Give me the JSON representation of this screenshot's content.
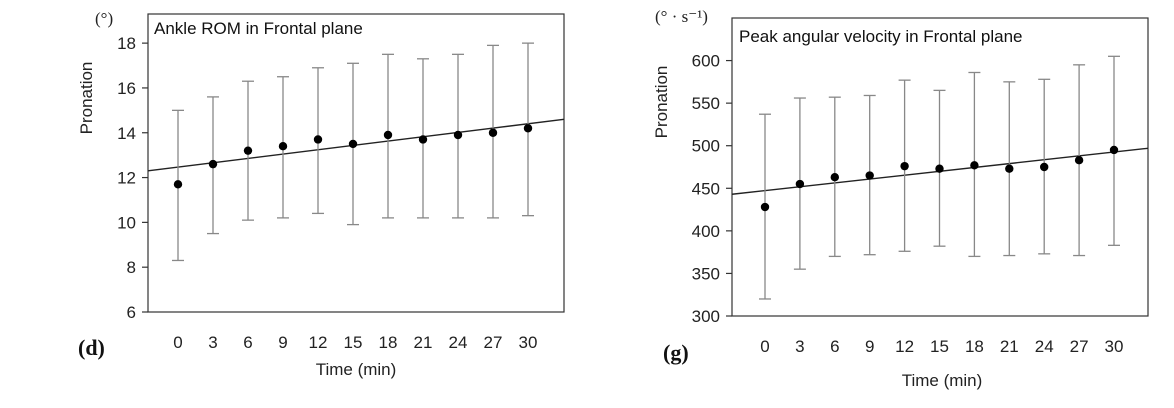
{
  "chart_data": [
    {
      "type": "scatter",
      "panel": "(d)",
      "title": "Ankle ROM in Frontal plane",
      "xlabel": "Time (min)",
      "ylabel": "Pronation",
      "unit": "(°)",
      "x": [
        0,
        3,
        6,
        9,
        12,
        15,
        18,
        21,
        24,
        27,
        30
      ],
      "y": [
        11.7,
        12.6,
        13.2,
        13.4,
        13.7,
        13.5,
        13.9,
        13.7,
        13.9,
        14.0,
        14.2
      ],
      "error_low": [
        8.3,
        9.5,
        10.1,
        10.2,
        10.4,
        9.9,
        10.2,
        10.2,
        10.2,
        10.2,
        10.3
      ],
      "error_high": [
        15.0,
        15.6,
        16.3,
        16.5,
        16.9,
        17.1,
        17.5,
        17.3,
        17.5,
        17.9,
        18.0
      ],
      "trend": {
        "y_at_start": 12.3,
        "y_at_end": 14.6
      },
      "ylim": [
        6,
        19.3
      ],
      "yticks": [
        6,
        8,
        10,
        12,
        14,
        16,
        18
      ],
      "xticks": [
        0,
        3,
        6,
        9,
        12,
        15,
        18,
        21,
        24,
        27,
        30
      ],
      "legend": "none"
    },
    {
      "type": "scatter",
      "panel": "(g)",
      "title": "Peak angular velocity in Frontal plane",
      "xlabel": "Time (min)",
      "ylabel": "Pronation",
      "unit": "(° · s⁻¹)",
      "x": [
        0,
        3,
        6,
        9,
        12,
        15,
        18,
        21,
        24,
        27,
        30
      ],
      "y": [
        428,
        455,
        463,
        465,
        476,
        473,
        477,
        473,
        475,
        483,
        495
      ],
      "error_low": [
        320,
        355,
        370,
        372,
        376,
        382,
        370,
        371,
        373,
        371,
        383
      ],
      "error_high": [
        537,
        556,
        557,
        559,
        577,
        565,
        586,
        575,
        578,
        595,
        605
      ],
      "trend": {
        "y_at_start": 443,
        "y_at_end": 497
      },
      "ylim": [
        300,
        650
      ],
      "yticks": [
        300,
        350,
        400,
        450,
        500,
        550,
        600
      ],
      "xticks": [
        0,
        3,
        6,
        9,
        12,
        15,
        18,
        21,
        24,
        27,
        30
      ],
      "legend": "none"
    }
  ]
}
